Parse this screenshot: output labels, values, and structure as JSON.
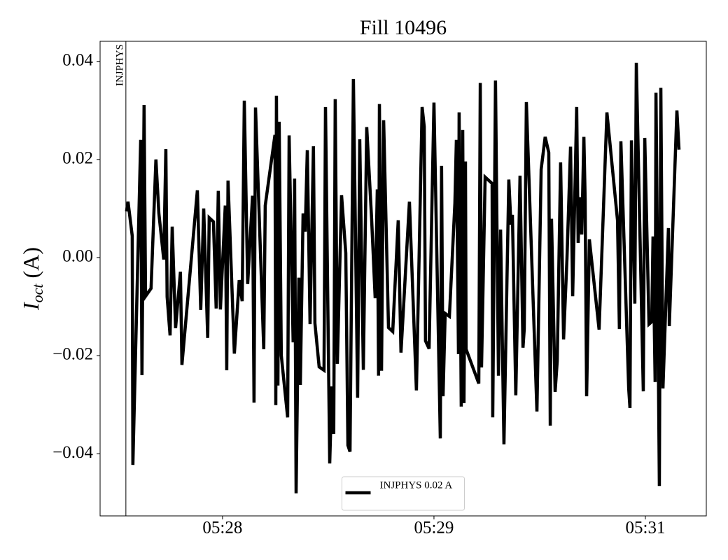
{
  "chart_data": {
    "type": "line",
    "title": "Fill 10496",
    "ylabel": {
      "symbol": "I",
      "subscript": "oct",
      "unit": "(A)"
    },
    "xlim": [
      -0.579,
      2.288
    ],
    "ylim": [
      -0.0527,
      0.0441
    ],
    "xticks": [
      {
        "value": 0,
        "label": "05:28"
      },
      {
        "value": 1,
        "label": "05:29"
      },
      {
        "value": 2,
        "label": "05:31"
      }
    ],
    "yticks": [
      0.04,
      0.02,
      {
        "value": 0,
        "label": "0.00"
      },
      {
        "value": -0.02,
        "label": "−0.02"
      },
      {
        "value": -0.04,
        "label": "−0.04"
      }
    ],
    "grid": false,
    "legend": "lower center",
    "marker": {
      "x": -0.457,
      "label": "INJPHYS",
      "color": "#000000"
    },
    "x": [
      -0.454,
      -0.447,
      -0.427,
      -0.424,
      -0.387,
      -0.381,
      -0.371,
      -0.364,
      -0.338,
      -0.315,
      -0.301,
      -0.278,
      -0.268,
      -0.262,
      -0.248,
      -0.238,
      -0.222,
      -0.199,
      -0.192,
      -0.119,
      -0.103,
      -0.089,
      -0.07,
      -0.063,
      -0.043,
      -0.03,
      -0.02,
      -0.01,
      0.013,
      0.02,
      0.026,
      0.056,
      0.079,
      0.093,
      0.103,
      0.119,
      0.142,
      0.149,
      0.156,
      0.195,
      0.202,
      0.248,
      0.252,
      0.255,
      0.262,
      0.268,
      0.278,
      0.308,
      0.315,
      0.334,
      0.341,
      0.348,
      0.361,
      0.368,
      0.381,
      0.391,
      0.401,
      0.414,
      0.43,
      0.437,
      0.457,
      0.48,
      0.487,
      0.507,
      0.517,
      0.526,
      0.533,
      0.543,
      0.563,
      0.583,
      0.593,
      0.603,
      0.619,
      0.639,
      0.649,
      0.666,
      0.682,
      0.705,
      0.722,
      0.732,
      0.738,
      0.742,
      0.752,
      0.762,
      0.785,
      0.805,
      0.831,
      0.844,
      0.884,
      0.917,
      0.944,
      0.954,
      0.96,
      0.977,
      1.0,
      1.03,
      1.036,
      1.043,
      1.053,
      1.073,
      1.099,
      1.106,
      1.116,
      1.119,
      1.129,
      1.136,
      1.142,
      1.149,
      1.152,
      1.212,
      1.219,
      1.225,
      1.242,
      1.275,
      1.278,
      1.291,
      1.305,
      1.315,
      1.331,
      1.354,
      1.364,
      1.371,
      1.387,
      1.407,
      1.421,
      1.427,
      1.437,
      1.487,
      1.507,
      1.526,
      1.543,
      1.55,
      1.556,
      1.573,
      1.583,
      1.599,
      1.613,
      1.629,
      1.646,
      1.656,
      1.675,
      1.682,
      1.689,
      1.699,
      1.709,
      1.715,
      1.722,
      1.735,
      1.781,
      1.818,
      1.868,
      1.877,
      1.884,
      1.921,
      1.927,
      1.934,
      1.95,
      1.957,
      1.99,
      1.997,
      2.017,
      2.03,
      2.036,
      2.046,
      2.05,
      2.056,
      2.066,
      2.073,
      2.083,
      2.109,
      2.113,
      2.149,
      2.159
    ],
    "series": [
      {
        "name": "INJPHYS 0.02 A",
        "color": "#000000",
        "values": [
          0.0094,
          0.0114,
          0.0044,
          -0.0423,
          0.024,
          -0.024,
          0.0311,
          -0.0079,
          -0.0063,
          0.02,
          0.009,
          -0.0004,
          0.0221,
          -0.008,
          -0.0159,
          0.0063,
          -0.0144,
          -0.0029,
          -0.0219,
          0.0137,
          -0.0107,
          0.01,
          -0.0164,
          0.0081,
          0.0073,
          -0.0104,
          0.0136,
          -0.0106,
          0.0106,
          -0.023,
          0.0157,
          -0.0196,
          -0.0046,
          -0.0089,
          0.032,
          -0.0054,
          0.0126,
          -0.0296,
          0.0306,
          -0.0187,
          0.0106,
          0.025,
          -0.0301,
          0.033,
          -0.0261,
          0.0277,
          -0.02,
          -0.0326,
          0.0249,
          -0.0173,
          0.0161,
          -0.0481,
          -0.0041,
          -0.026,
          0.009,
          0.0053,
          0.0219,
          -0.0136,
          0.0227,
          -0.0134,
          -0.0223,
          -0.023,
          0.0307,
          -0.042,
          -0.0263,
          -0.036,
          0.0323,
          -0.0217,
          0.0127,
          0.0009,
          -0.0383,
          -0.0396,
          0.0364,
          -0.0286,
          0.0241,
          -0.0229,
          0.0266,
          0.008,
          -0.0083,
          0.0139,
          -0.0241,
          0.0313,
          -0.0231,
          0.028,
          -0.0143,
          -0.0151,
          0.0076,
          -0.0194,
          0.0114,
          -0.0271,
          0.0307,
          0.0267,
          -0.017,
          -0.0186,
          0.0316,
          -0.0369,
          0.0187,
          -0.0283,
          -0.0114,
          -0.012,
          0.0111,
          0.024,
          -0.0197,
          0.0296,
          -0.0304,
          0.026,
          -0.0297,
          0.0196,
          -0.0187,
          -0.0257,
          0.0356,
          -0.0224,
          0.0164,
          0.0151,
          -0.0326,
          0.0361,
          -0.0241,
          0.0057,
          -0.0381,
          0.0159,
          0.0067,
          0.0087,
          -0.0281,
          0.0167,
          -0.0184,
          -0.0146,
          0.0317,
          -0.0314,
          0.018,
          0.0246,
          0.0214,
          -0.0343,
          0.0079,
          -0.0274,
          -0.0211,
          0.0194,
          -0.0167,
          -0.0003,
          0.0226,
          -0.0079,
          0.0307,
          0.003,
          0.0123,
          0.0047,
          0.0246,
          0.0119,
          -0.0283,
          0.0037,
          -0.0147,
          0.0296,
          0.0076,
          -0.0146,
          0.0237,
          -0.0267,
          -0.0307,
          0.0239,
          -0.0094,
          0.0397,
          -0.0273,
          0.0244,
          -0.0136,
          -0.0131,
          0.0043,
          -0.0254,
          0.0336,
          0.0054,
          -0.0466,
          0.0346,
          -0.0267,
          0.006,
          -0.014,
          0.03,
          0.022
        ]
      }
    ]
  }
}
